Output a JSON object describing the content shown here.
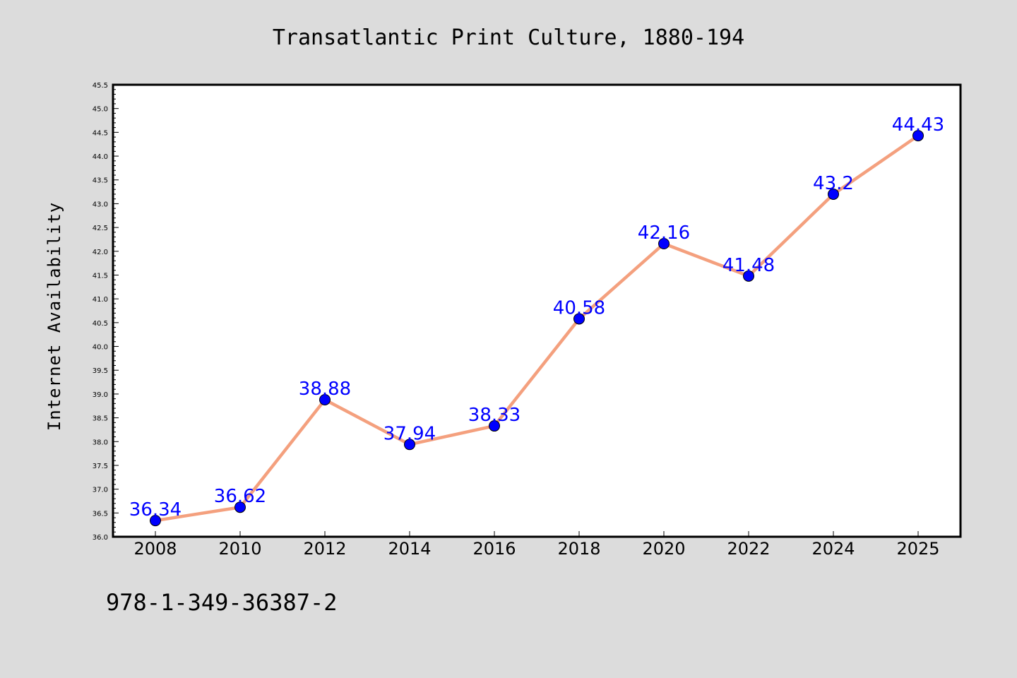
{
  "chart_data": {
    "type": "line",
    "title": "Transatlantic Print Culture, 1880-194",
    "ylabel": "Internet Availability",
    "xlabel": "",
    "categories": [
      "2008",
      "2010",
      "2012",
      "2014",
      "2016",
      "2018",
      "2020",
      "2022",
      "2024",
      "2025"
    ],
    "series": [
      {
        "values": [
          36.34,
          36.62,
          38.88,
          37.94,
          38.33,
          40.58,
          42.16,
          41.48,
          43.2,
          44.43
        ],
        "data_labels": [
          "36.34",
          "36.62",
          "38.88",
          "37.94",
          "38.33",
          "40.58",
          "42.16",
          "41.48",
          "43.2",
          "44.43"
        ]
      }
    ],
    "ylim": [
      36.0,
      45.5
    ],
    "yticks": [
      "36.0",
      "36.5",
      "37.0",
      "37.5",
      "38.0",
      "38.5",
      "39.0",
      "39.5",
      "40.0",
      "40.5",
      "41.0",
      "41.5",
      "42.0",
      "42.5",
      "43.0",
      "43.5",
      "44.0",
      "44.5",
      "45.0",
      "45.5"
    ],
    "grid": false,
    "colors": {
      "line": "#f4a07e",
      "marker": "#0000ff",
      "data_label": "#0000ff",
      "background": "#dcdcdc",
      "plot_background": "#ffffff"
    }
  },
  "footer": {
    "isbn": "978-1-349-36387-2"
  }
}
